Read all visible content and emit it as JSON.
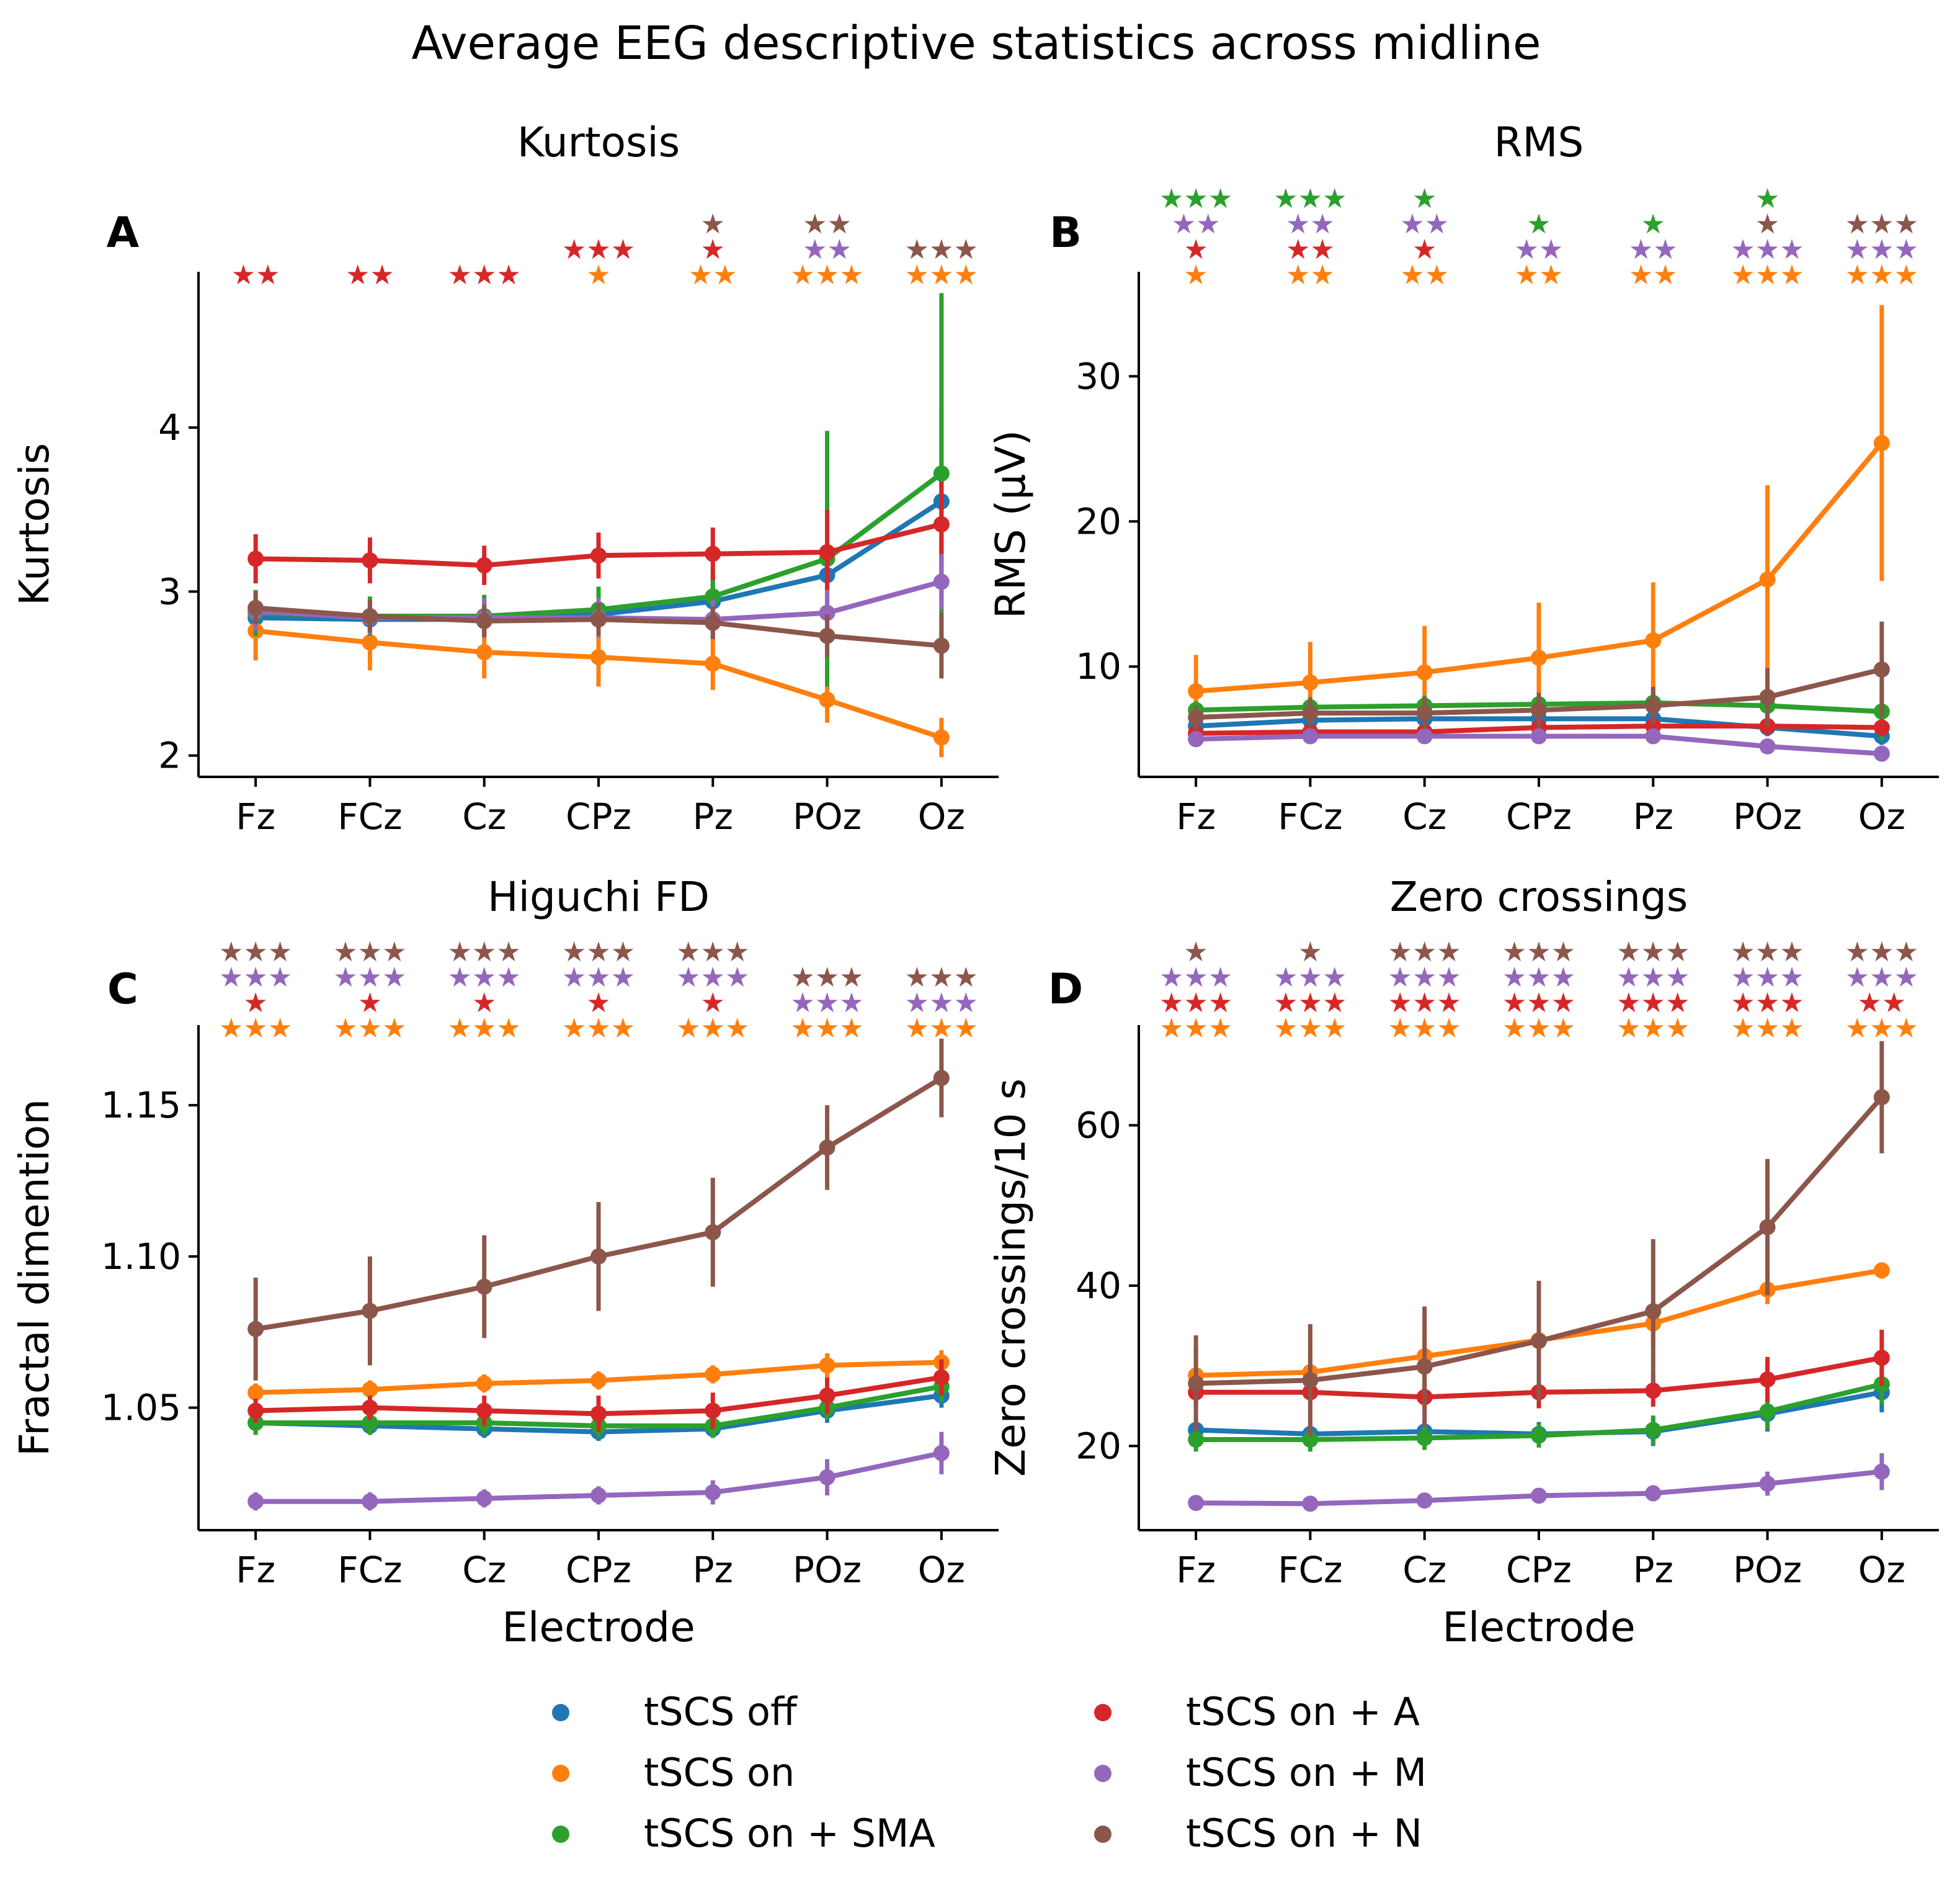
{
  "title": "Average EEG descriptive statistics across midline",
  "legend": {
    "position": "bottom-center",
    "entries": [
      "tSCS off",
      "tSCS on",
      "tSCS on + SMA",
      "tSCS on + A",
      "tSCS on + M",
      "tSCS on + N"
    ]
  },
  "colors": {
    "tSCS off": "#1f77b4",
    "tSCS on": "#ff7f0e",
    "tSCS on + SMA": "#2ca02c",
    "tSCS on + A": "#d62728",
    "tSCS on + M": "#9467bd",
    "tSCS on + N": "#8c564b"
  },
  "star_glyph": "★",
  "chart_data": [
    {
      "panel": "A",
      "type": "line",
      "title": "Kurtosis",
      "xlabel": "",
      "ylabel": "Kurtosis",
      "categories": [
        "Fz",
        "FCz",
        "Cz",
        "CPz",
        "Pz",
        "POz",
        "Oz"
      ],
      "ylim": [
        1.87,
        4.95
      ],
      "yticks": [
        2,
        3,
        4
      ],
      "ytick_labels": [
        "2",
        "3",
        "4"
      ],
      "series": [
        {
          "name": "tSCS off",
          "values": [
            2.84,
            2.83,
            2.83,
            2.86,
            2.94,
            3.1,
            3.55
          ],
          "err": [
            0.06,
            0.08,
            0.1,
            0.1,
            0.12,
            0.2,
            0.58
          ]
        },
        {
          "name": "tSCS on",
          "values": [
            2.76,
            2.69,
            2.63,
            2.6,
            2.56,
            2.34,
            2.11
          ],
          "err": [
            0.18,
            0.17,
            0.16,
            0.18,
            0.16,
            0.14,
            0.12
          ]
        },
        {
          "name": "tSCS on + SMA",
          "values": [
            2.87,
            2.85,
            2.85,
            2.89,
            2.97,
            3.2,
            3.72
          ],
          "err": [
            0.14,
            0.12,
            0.13,
            0.14,
            0.15,
            0.78,
            1.1
          ]
        },
        {
          "name": "tSCS on + A",
          "values": [
            3.2,
            3.19,
            3.16,
            3.22,
            3.23,
            3.24,
            3.41
          ],
          "err": [
            0.15,
            0.14,
            0.12,
            0.14,
            0.16,
            0.26,
            0.26
          ]
        },
        {
          "name": "tSCS on + M",
          "values": [
            2.88,
            2.84,
            2.84,
            2.84,
            2.83,
            2.87,
            3.06
          ],
          "err": [
            0.12,
            0.1,
            0.12,
            0.12,
            0.12,
            0.14,
            0.17
          ]
        },
        {
          "name": "tSCS on + N",
          "values": [
            2.9,
            2.85,
            2.82,
            2.83,
            2.81,
            2.73,
            2.67
          ],
          "err": [
            0.1,
            0.1,
            0.1,
            0.1,
            0.1,
            0.13,
            0.2
          ]
        }
      ],
      "significance": [
        [
          {
            "n": 2,
            "series": "tSCS on + A"
          }
        ],
        [
          {
            "n": 2,
            "series": "tSCS on + A"
          }
        ],
        [
          {
            "n": 3,
            "series": "tSCS on + A"
          }
        ],
        [
          {
            "n": 1,
            "series": "tSCS on"
          },
          {
            "n": 3,
            "series": "tSCS on + A"
          }
        ],
        [
          {
            "n": 2,
            "series": "tSCS on"
          },
          {
            "n": 1,
            "series": "tSCS on + A"
          },
          {
            "n": 1,
            "series": "tSCS on + N"
          }
        ],
        [
          {
            "n": 3,
            "series": "tSCS on"
          },
          {
            "n": 2,
            "series": "tSCS on + M"
          },
          {
            "n": 2,
            "series": "tSCS on + N"
          }
        ],
        [
          {
            "n": 3,
            "series": "tSCS on"
          },
          {
            "n": 3,
            "series": "tSCS on + N"
          }
        ]
      ]
    },
    {
      "panel": "B",
      "type": "line",
      "title": "RMS",
      "xlabel": "",
      "ylabel": "RMS (μV)",
      "categories": [
        "Fz",
        "FCz",
        "Cz",
        "CPz",
        "Pz",
        "POz",
        "Oz"
      ],
      "ylim": [
        2.4,
        37.2
      ],
      "yticks": [
        10,
        20,
        30
      ],
      "ytick_labels": [
        "10",
        "20",
        "30"
      ],
      "series": [
        {
          "name": "tSCS off",
          "values": [
            5.9,
            6.3,
            6.4,
            6.4,
            6.4,
            5.8,
            5.2
          ],
          "err": [
            0.5,
            0.6,
            0.6,
            0.6,
            0.6,
            0.6,
            0.6
          ]
        },
        {
          "name": "tSCS on",
          "values": [
            8.3,
            8.9,
            9.6,
            10.6,
            11.8,
            16.0,
            25.4
          ],
          "err": [
            2.5,
            2.8,
            3.2,
            3.8,
            4.0,
            6.5,
            9.5
          ]
        },
        {
          "name": "tSCS on + SMA",
          "values": [
            7.0,
            7.2,
            7.3,
            7.4,
            7.5,
            7.3,
            6.9
          ],
          "err": [
            0.6,
            0.7,
            0.7,
            0.8,
            0.8,
            1.3,
            2.0
          ]
        },
        {
          "name": "tSCS on + A",
          "values": [
            5.4,
            5.5,
            5.5,
            5.8,
            5.9,
            5.9,
            5.8
          ],
          "err": [
            0.5,
            0.5,
            0.5,
            0.6,
            0.6,
            0.6,
            0.6
          ]
        },
        {
          "name": "tSCS on + M",
          "values": [
            5.0,
            5.2,
            5.2,
            5.2,
            5.2,
            4.5,
            4.0
          ],
          "err": [
            0.5,
            0.5,
            0.5,
            0.5,
            0.5,
            0.5,
            0.5
          ]
        },
        {
          "name": "tSCS on + N",
          "values": [
            6.5,
            6.8,
            6.8,
            7.0,
            7.3,
            7.9,
            9.8
          ],
          "err": [
            0.8,
            1.0,
            1.1,
            1.2,
            1.3,
            2.0,
            3.3
          ]
        }
      ],
      "significance": [
        [
          {
            "n": 1,
            "series": "tSCS on"
          },
          {
            "n": 1,
            "series": "tSCS on + A"
          },
          {
            "n": 2,
            "series": "tSCS on + M"
          },
          {
            "n": 3,
            "series": "tSCS on + SMA"
          }
        ],
        [
          {
            "n": 2,
            "series": "tSCS on"
          },
          {
            "n": 2,
            "series": "tSCS on + A"
          },
          {
            "n": 2,
            "series": "tSCS on + M"
          },
          {
            "n": 3,
            "series": "tSCS on + SMA"
          }
        ],
        [
          {
            "n": 2,
            "series": "tSCS on"
          },
          {
            "n": 1,
            "series": "tSCS on + A"
          },
          {
            "n": 2,
            "series": "tSCS on + M"
          },
          {
            "n": 1,
            "series": "tSCS on + SMA"
          }
        ],
        [
          {
            "n": 2,
            "series": "tSCS on"
          },
          {
            "n": 2,
            "series": "tSCS on + M"
          },
          {
            "n": 1,
            "series": "tSCS on + SMA"
          }
        ],
        [
          {
            "n": 2,
            "series": "tSCS on"
          },
          {
            "n": 2,
            "series": "tSCS on + M"
          },
          {
            "n": 1,
            "series": "tSCS on + SMA"
          }
        ],
        [
          {
            "n": 3,
            "series": "tSCS on"
          },
          {
            "n": 3,
            "series": "tSCS on + M"
          },
          {
            "n": 1,
            "series": "tSCS on + N"
          },
          {
            "n": 1,
            "series": "tSCS on + SMA"
          }
        ],
        [
          {
            "n": 3,
            "series": "tSCS on"
          },
          {
            "n": 3,
            "series": "tSCS on + M"
          },
          {
            "n": 3,
            "series": "tSCS on + N"
          }
        ]
      ]
    },
    {
      "panel": "C",
      "type": "line",
      "title": "Higuchi FD",
      "xlabel": "Electrode",
      "ylabel": "Fractal dimention",
      "categories": [
        "Fz",
        "FCz",
        "Cz",
        "CPz",
        "Pz",
        "POz",
        "Oz"
      ],
      "ylim": [
        1.0095,
        1.1765
      ],
      "yticks": [
        1.05,
        1.1,
        1.15
      ],
      "ytick_labels": [
        "1.05",
        "1.10",
        "1.15"
      ],
      "series": [
        {
          "name": "tSCS off",
          "values": [
            1.045,
            1.044,
            1.043,
            1.042,
            1.043,
            1.049,
            1.054
          ],
          "err": [
            0.003,
            0.003,
            0.003,
            0.003,
            0.003,
            0.004,
            0.004
          ]
        },
        {
          "name": "tSCS on",
          "values": [
            1.055,
            1.056,
            1.058,
            1.059,
            1.061,
            1.064,
            1.065
          ],
          "err": [
            0.003,
            0.003,
            0.003,
            0.003,
            0.003,
            0.004,
            0.004
          ]
        },
        {
          "name": "tSCS on + SMA",
          "values": [
            1.045,
            1.045,
            1.045,
            1.044,
            1.044,
            1.05,
            1.057
          ],
          "err": [
            0.004,
            0.004,
            0.004,
            0.004,
            0.004,
            0.004,
            0.005
          ]
        },
        {
          "name": "tSCS on + A",
          "values": [
            1.049,
            1.05,
            1.049,
            1.048,
            1.049,
            1.054,
            1.06
          ],
          "err": [
            0.004,
            0.004,
            0.005,
            0.006,
            0.006,
            0.006,
            0.006
          ]
        },
        {
          "name": "tSCS on + M",
          "values": [
            1.019,
            1.019,
            1.02,
            1.021,
            1.022,
            1.027,
            1.035
          ],
          "err": [
            0.003,
            0.003,
            0.003,
            0.003,
            0.004,
            0.006,
            0.007
          ]
        },
        {
          "name": "tSCS on + N",
          "values": [
            1.076,
            1.082,
            1.09,
            1.1,
            1.108,
            1.136,
            1.159
          ],
          "err": [
            0.017,
            0.018,
            0.017,
            0.018,
            0.018,
            0.014,
            0.013
          ]
        }
      ],
      "significance": [
        [
          {
            "n": 3,
            "series": "tSCS on"
          },
          {
            "n": 1,
            "series": "tSCS on + A"
          },
          {
            "n": 3,
            "series": "tSCS on + M"
          },
          {
            "n": 3,
            "series": "tSCS on + N"
          }
        ],
        [
          {
            "n": 3,
            "series": "tSCS on"
          },
          {
            "n": 1,
            "series": "tSCS on + A"
          },
          {
            "n": 3,
            "series": "tSCS on + M"
          },
          {
            "n": 3,
            "series": "tSCS on + N"
          }
        ],
        [
          {
            "n": 3,
            "series": "tSCS on"
          },
          {
            "n": 1,
            "series": "tSCS on + A"
          },
          {
            "n": 3,
            "series": "tSCS on + M"
          },
          {
            "n": 3,
            "series": "tSCS on + N"
          }
        ],
        [
          {
            "n": 3,
            "series": "tSCS on"
          },
          {
            "n": 1,
            "series": "tSCS on + A"
          },
          {
            "n": 3,
            "series": "tSCS on + M"
          },
          {
            "n": 3,
            "series": "tSCS on + N"
          }
        ],
        [
          {
            "n": 3,
            "series": "tSCS on"
          },
          {
            "n": 1,
            "series": "tSCS on + A"
          },
          {
            "n": 3,
            "series": "tSCS on + M"
          },
          {
            "n": 3,
            "series": "tSCS on + N"
          }
        ],
        [
          {
            "n": 3,
            "series": "tSCS on"
          },
          {
            "n": 3,
            "series": "tSCS on + M"
          },
          {
            "n": 3,
            "series": "tSCS on + N"
          }
        ],
        [
          {
            "n": 3,
            "series": "tSCS on"
          },
          {
            "n": 3,
            "series": "tSCS on + M"
          },
          {
            "n": 3,
            "series": "tSCS on + N"
          }
        ]
      ]
    },
    {
      "panel": "D",
      "type": "line",
      "title": "Zero crossings",
      "xlabel": "Electrode",
      "ylabel": "Zero crossings/10 s",
      "categories": [
        "Fz",
        "FCz",
        "Cz",
        "CPz",
        "Pz",
        "POz",
        "Oz"
      ],
      "ylim": [
        9.5,
        72.5
      ],
      "yticks": [
        20,
        40,
        60
      ],
      "ytick_labels": [
        "20",
        "40",
        "60"
      ],
      "series": [
        {
          "name": "tSCS off",
          "values": [
            22.0,
            21.5,
            21.8,
            21.5,
            21.8,
            24.0,
            26.7
          ],
          "err": [
            1.5,
            1.5,
            1.5,
            1.5,
            1.8,
            2.2,
            2.5
          ]
        },
        {
          "name": "tSCS on",
          "values": [
            28.8,
            29.2,
            31.2,
            33.2,
            35.3,
            39.5,
            41.9
          ],
          "err": [
            3.5,
            3.2,
            3.2,
            3.2,
            2.8,
            1.8,
            1.0
          ]
        },
        {
          "name": "tSCS on + SMA",
          "values": [
            20.8,
            20.8,
            21.0,
            21.3,
            22.0,
            24.3,
            27.7
          ],
          "err": [
            1.5,
            1.5,
            1.5,
            1.5,
            1.8,
            2.2,
            2.5
          ]
        },
        {
          "name": "tSCS on + A",
          "values": [
            26.7,
            26.7,
            26.1,
            26.7,
            26.9,
            28.3,
            31.0
          ],
          "err": [
            1.8,
            1.8,
            1.8,
            2.0,
            2.0,
            2.8,
            3.5
          ]
        },
        {
          "name": "tSCS on + M",
          "values": [
            12.9,
            12.8,
            13.2,
            13.8,
            14.1,
            15.3,
            16.8
          ],
          "err": [
            0.6,
            0.6,
            0.7,
            0.8,
            1.0,
            1.5,
            2.3
          ]
        },
        {
          "name": "tSCS on + N",
          "values": [
            27.8,
            28.2,
            29.9,
            33.1,
            36.8,
            47.3,
            63.5
          ],
          "err": [
            6.0,
            7.0,
            7.5,
            7.5,
            9.0,
            8.5,
            7.0
          ]
        }
      ],
      "significance": [
        [
          {
            "n": 3,
            "series": "tSCS on"
          },
          {
            "n": 3,
            "series": "tSCS on + A"
          },
          {
            "n": 3,
            "series": "tSCS on + M"
          },
          {
            "n": 1,
            "series": "tSCS on + N"
          }
        ],
        [
          {
            "n": 3,
            "series": "tSCS on"
          },
          {
            "n": 3,
            "series": "tSCS on + A"
          },
          {
            "n": 3,
            "series": "tSCS on + M"
          },
          {
            "n": 1,
            "series": "tSCS on + N"
          }
        ],
        [
          {
            "n": 3,
            "series": "tSCS on"
          },
          {
            "n": 3,
            "series": "tSCS on + A"
          },
          {
            "n": 3,
            "series": "tSCS on + M"
          },
          {
            "n": 3,
            "series": "tSCS on + N"
          }
        ],
        [
          {
            "n": 3,
            "series": "tSCS on"
          },
          {
            "n": 3,
            "series": "tSCS on + A"
          },
          {
            "n": 3,
            "series": "tSCS on + M"
          },
          {
            "n": 3,
            "series": "tSCS on + N"
          }
        ],
        [
          {
            "n": 3,
            "series": "tSCS on"
          },
          {
            "n": 3,
            "series": "tSCS on + A"
          },
          {
            "n": 3,
            "series": "tSCS on + M"
          },
          {
            "n": 3,
            "series": "tSCS on + N"
          }
        ],
        [
          {
            "n": 3,
            "series": "tSCS on"
          },
          {
            "n": 3,
            "series": "tSCS on + A"
          },
          {
            "n": 3,
            "series": "tSCS on + M"
          },
          {
            "n": 3,
            "series": "tSCS on + N"
          }
        ],
        [
          {
            "n": 3,
            "series": "tSCS on"
          },
          {
            "n": 2,
            "series": "tSCS on + A"
          },
          {
            "n": 3,
            "series": "tSCS on + M"
          },
          {
            "n": 3,
            "series": "tSCS on + N"
          }
        ]
      ]
    }
  ]
}
